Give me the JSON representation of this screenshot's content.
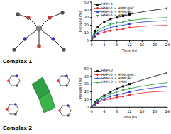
{
  "chart_data": [
    {
      "type": "line",
      "title": "Complex 1",
      "xlabel": "Time (h)",
      "ylabel": "Release (%)",
      "x": [
        0,
        1,
        2,
        4,
        6,
        8,
        10,
        12,
        24
      ],
      "xlim": [
        0,
        24
      ],
      "xticks": [
        0,
        4,
        8,
        12,
        16,
        20,
        24
      ],
      "ylim": [
        0,
        50
      ],
      "yticks": [
        0,
        10,
        20,
        30,
        40,
        50
      ],
      "legend": "upper left",
      "series": [
        {
          "name": "HNPs-1",
          "color": "#000000",
          "marker": "square",
          "values": [
            0,
            12,
            18,
            24,
            28,
            30,
            32,
            34,
            42
          ]
        },
        {
          "name": "HNPs-1 + HPMC@BC",
          "color": "#e8202a",
          "marker": "circle",
          "values": [
            0,
            5,
            8,
            11,
            13,
            14,
            15,
            17,
            20
          ]
        },
        {
          "name": "HNPs-1 + HPMC/BC",
          "color": "#2233cc",
          "marker": "triangle",
          "values": [
            0,
            6,
            10,
            14,
            17,
            19,
            20,
            22,
            26
          ]
        },
        {
          "name": "HNPs-1 + HPMC",
          "color": "#1a9a3a",
          "marker": "triangle-down",
          "values": [
            0,
            8,
            13,
            18,
            21,
            23,
            24,
            26,
            30
          ]
        }
      ]
    },
    {
      "type": "line",
      "title": "Complex 2",
      "xlabel": "Time (h)",
      "ylabel": "Release (%)",
      "x": [
        0,
        1,
        2,
        4,
        6,
        8,
        10,
        12,
        24
      ],
      "xlim": [
        0,
        24
      ],
      "xticks": [
        0,
        4,
        8,
        12,
        16,
        20,
        24
      ],
      "ylim": [
        0,
        50
      ],
      "yticks": [
        0,
        10,
        20,
        30,
        40,
        50
      ],
      "legend": "upper left",
      "series": [
        {
          "name": "HNPs-2",
          "color": "#000000",
          "marker": "square",
          "values": [
            0,
            6,
            10,
            15,
            20,
            24,
            27,
            30,
            45
          ]
        },
        {
          "name": "HNPs-2 + HPMC@BC",
          "color": "#e8202a",
          "marker": "circle",
          "values": [
            0,
            3,
            6,
            9,
            11,
            13,
            14,
            16,
            21
          ]
        },
        {
          "name": "HNPs-2 + HPMC/BC",
          "color": "#2233cc",
          "marker": "triangle",
          "values": [
            0,
            4,
            7,
            11,
            14,
            16,
            18,
            20,
            27
          ]
        },
        {
          "name": "HNPs-2 + HPMC",
          "color": "#1a9a3a",
          "marker": "triangle-down",
          "values": [
            0,
            5,
            9,
            13,
            17,
            20,
            22,
            24,
            32
          ]
        }
      ]
    }
  ]
}
